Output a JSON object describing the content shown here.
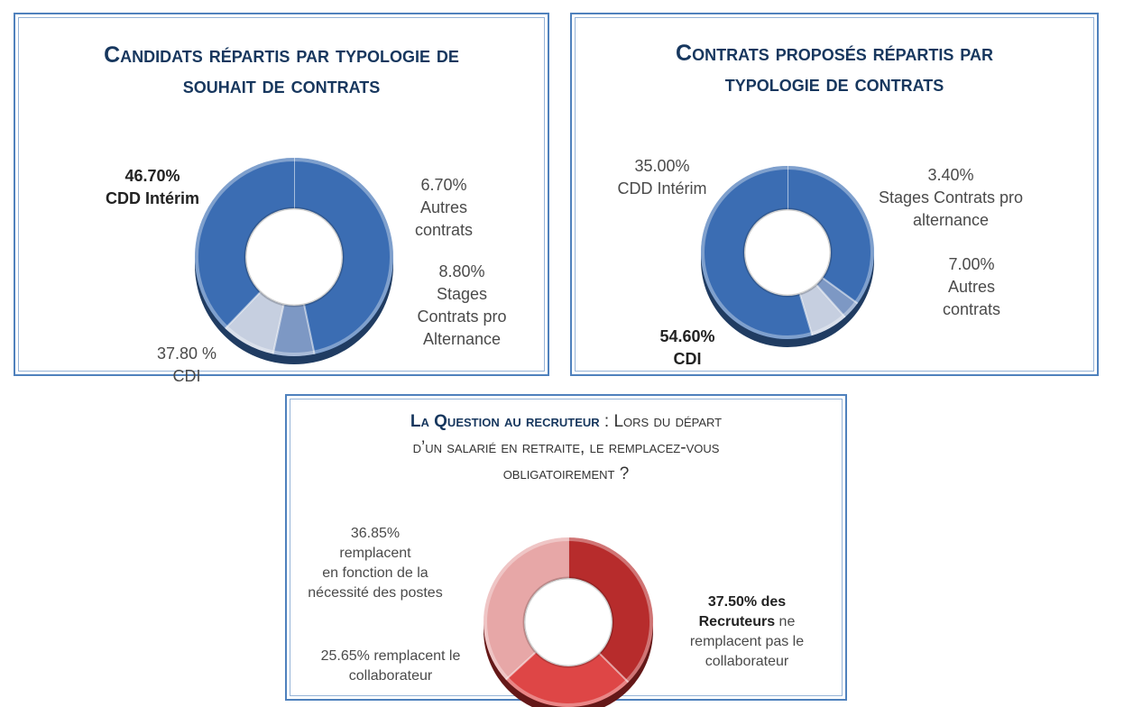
{
  "colors": {
    "panel_border": "#4f81bd",
    "title": "#17375e",
    "blue_series": [
      "#3b6db3",
      "#7d98c4",
      "#c6cfe0"
    ],
    "red_series": [
      "#b72c2c",
      "#de4646",
      "#e7a7a7"
    ]
  },
  "panel_1": {
    "title": "Candidats répartis par typologie de\nsouhait de contrats",
    "labels": {
      "cdd": {
        "pct": "46.70%",
        "name": "CDD Intérim"
      },
      "cdi": {
        "pct": "37.80 %",
        "name": "CDI"
      },
      "autres": {
        "pct": "6.70%",
        "name": "Autres\ncontrats"
      },
      "stages": {
        "pct": "8.80%",
        "name": "Stages\nContrats pro\nAlternance"
      }
    }
  },
  "panel_2": {
    "title": "Contrats proposés répartis par\ntypologie de contrats",
    "labels": {
      "cdd": {
        "pct": "35.00%",
        "name": "CDD Intérim"
      },
      "cdi": {
        "pct": "54.60%",
        "name": "CDI"
      },
      "autres": {
        "pct": "7.00%",
        "name": "Autres\ncontrats"
      },
      "stages": {
        "pct": "3.40%",
        "name": "Stages Contrats pro\nalternance"
      }
    }
  },
  "panel_3": {
    "title_strong": "La Question au recruteur",
    "title_rest": " : Lors du départ\nd’un salarié en retraite, le remplacez-vous\nobligatoirement ?",
    "labels": {
      "necessite": {
        "pct": "36.85%",
        "name": "remplacent\nen fonction de la\nnécessité des postes"
      },
      "remplacent": {
        "text": "25.65% remplacent le\ncollaborateur"
      },
      "ne_remplacent_pas": {
        "strong": "37.50% des\nRecruteurs",
        "rest": " ne\nremplacent pas le\ncollaborateur"
      }
    }
  },
  "chart_data": [
    {
      "type": "pie",
      "title": "Candidats répartis par typologie de souhait de contrats",
      "categories": [
        "CDD Intérim",
        "Autres contrats",
        "Stages Contrats pro Alternance",
        "CDI"
      ],
      "values": [
        46.7,
        6.7,
        8.8,
        37.8
      ],
      "colors": [
        "#3b6db3",
        "#7d98c4",
        "#c6cfe0",
        "#3b6db3"
      ]
    },
    {
      "type": "pie",
      "title": "Contrats proposés répartis par typologie de contrats",
      "categories": [
        "CDD Intérim",
        "Stages Contrats pro alternance",
        "Autres contrats",
        "CDI"
      ],
      "values": [
        35.0,
        3.4,
        7.0,
        54.6
      ],
      "colors": [
        "#3b6db3",
        "#7d98c4",
        "#c6cfe0",
        "#3b6db3"
      ]
    },
    {
      "type": "pie",
      "title": "La Question au recruteur : Lors du départ d’un salarié en retraite, le remplacez-vous obligatoirement ?",
      "categories": [
        "ne remplacent pas le collaborateur",
        "remplacent le collaborateur",
        "remplacent en fonction de la nécessité des postes"
      ],
      "values": [
        37.5,
        25.65,
        36.85
      ],
      "colors": [
        "#b72c2c",
        "#de4646",
        "#e7a7a7"
      ]
    }
  ]
}
